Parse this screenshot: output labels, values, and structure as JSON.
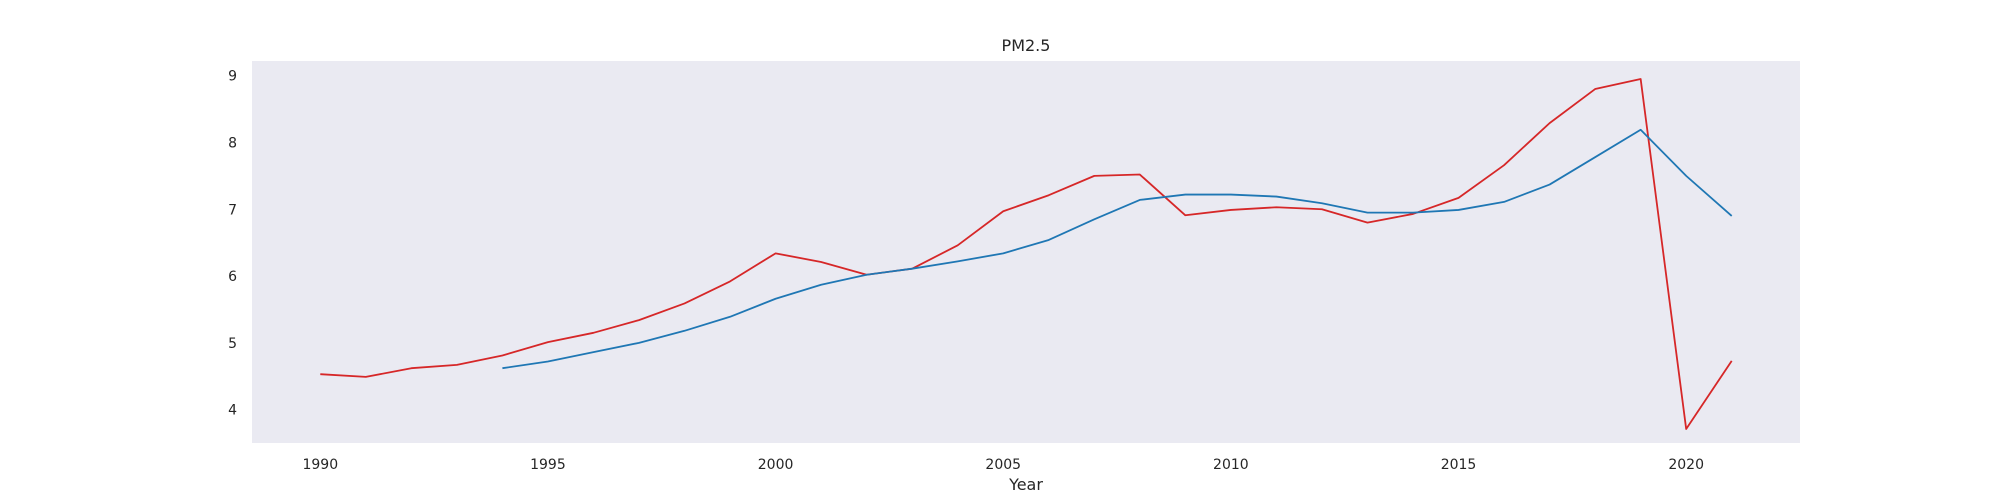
{
  "chart_data": {
    "type": "line",
    "title": "PM2.5",
    "xlabel": "Year",
    "ylabel": "",
    "xlim": [
      1988.5,
      2022.5
    ],
    "ylim": [
      3.5,
      9.22
    ],
    "xticks": [
      1990,
      1995,
      2000,
      2005,
      2010,
      2015,
      2020
    ],
    "yticks": [
      4,
      5,
      6,
      7,
      8,
      9
    ],
    "grid": false,
    "legend": "none",
    "background": "#eaeaf2",
    "series": [
      {
        "color": "#d62728",
        "x": [
          1990,
          1991,
          1992,
          1993,
          1994,
          1995,
          1996,
          1997,
          1998,
          1999,
          2000,
          2001,
          2002,
          2003,
          2004,
          2005,
          2006,
          2007,
          2008,
          2009,
          2010,
          2011,
          2012,
          2013,
          2014,
          2015,
          2016,
          2017,
          2018,
          2019,
          2020,
          2021
        ],
        "values": [
          4.53,
          4.49,
          4.62,
          4.67,
          4.81,
          5.01,
          5.15,
          5.34,
          5.59,
          5.92,
          6.34,
          6.21,
          6.02,
          6.11,
          6.46,
          6.97,
          7.21,
          7.5,
          7.52,
          6.91,
          6.99,
          7.03,
          7.0,
          6.8,
          6.93,
          7.17,
          7.66,
          8.29,
          8.8,
          8.95,
          3.71,
          4.73
        ]
      },
      {
        "color": "#1f77b4",
        "x": [
          1994,
          1995,
          1996,
          1997,
          1998,
          1999,
          2000,
          2001,
          2002,
          2003,
          2004,
          2005,
          2006,
          2007,
          2008,
          2009,
          2010,
          2011,
          2012,
          2013,
          2014,
          2015,
          2016,
          2017,
          2018,
          2019,
          2020,
          2021
        ],
        "values": [
          4.62,
          4.72,
          4.86,
          5.0,
          5.18,
          5.39,
          5.66,
          5.87,
          6.02,
          6.11,
          6.22,
          6.34,
          6.54,
          6.85,
          7.14,
          7.22,
          7.22,
          7.19,
          7.09,
          6.95,
          6.95,
          6.99,
          7.11,
          7.37,
          7.78,
          8.19,
          7.5,
          6.9
        ]
      }
    ]
  }
}
